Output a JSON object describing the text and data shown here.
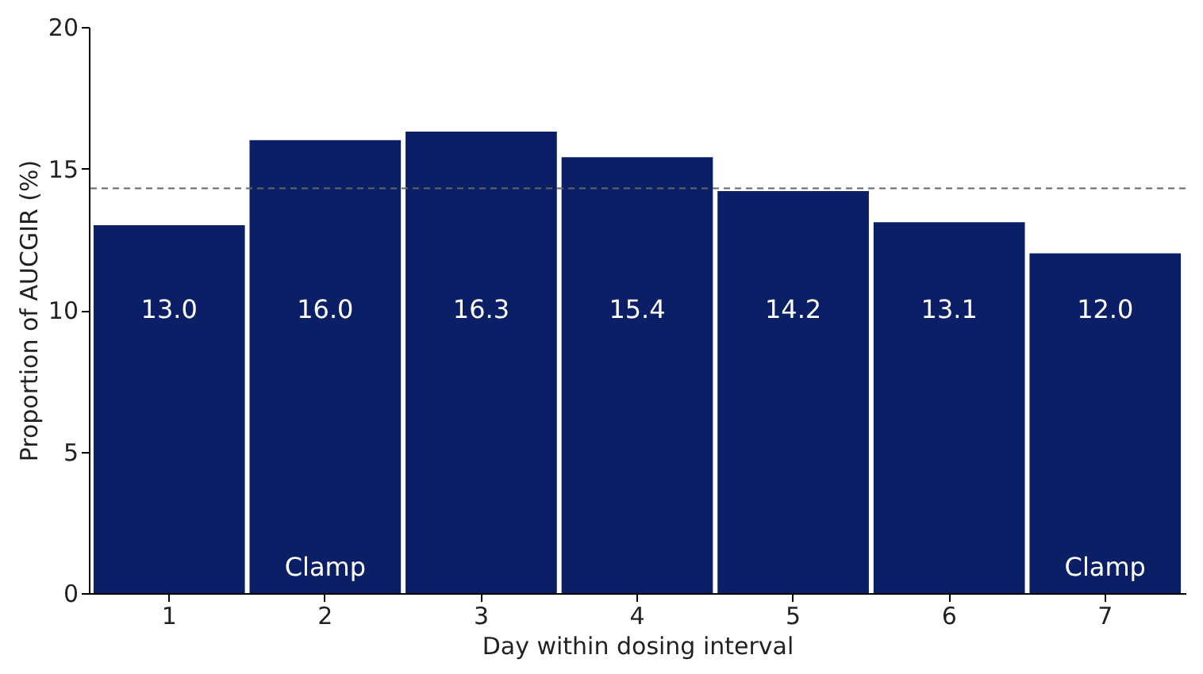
{
  "chart_data": {
    "type": "bar",
    "xlabel": "Day within dosing interval",
    "ylabel": "Proportion of AUCGIR (%)",
    "categories": [
      "1",
      "2",
      "3",
      "4",
      "5",
      "6",
      "7"
    ],
    "values": [
      13.0,
      16.0,
      16.3,
      15.4,
      14.2,
      13.1,
      12.0
    ],
    "color": "#0a1f66",
    "value_labels": [
      "13.0",
      "16.0",
      "16.3",
      "15.4",
      "14.2",
      "13.1",
      "12.0"
    ],
    "ylim": [
      0,
      20
    ],
    "yticks": [
      0,
      5,
      10,
      15,
      20
    ],
    "grid": false,
    "ref_lines": [
      {
        "axis": "y",
        "value": 14.3,
        "color": "#666666",
        "line_style": "dashed"
      }
    ],
    "annotations": [
      "Clamp",
      "Clamp"
    ]
  }
}
